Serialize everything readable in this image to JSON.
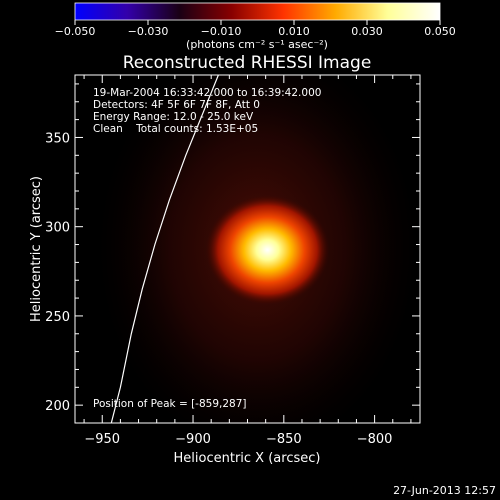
{
  "chart_data": {
    "type": "heatmap",
    "title": "Reconstructed RHESSI Image",
    "xlabel": "Heliocentric X (arcsec)",
    "ylabel": "Heliocentric Y (arcsec)",
    "xlim": [
      -965,
      -775
    ],
    "ylim": [
      190,
      385
    ],
    "x_ticks": [
      -950,
      -900,
      -850,
      -800
    ],
    "x_tick_labels": [
      "−950",
      "−900",
      "−850",
      "−800"
    ],
    "y_ticks": [
      200,
      250,
      300,
      350
    ],
    "y_tick_labels": [
      "200",
      "250",
      "300",
      "350"
    ],
    "colorbar": {
      "range": [
        -0.05,
        0.05
      ],
      "ticks": [
        -0.05,
        -0.03,
        -0.01,
        0.01,
        0.03,
        0.05
      ],
      "tick_labels": [
        "−0.050",
        "−0.030",
        "−0.010",
        "0.010",
        "0.030",
        "0.050"
      ],
      "unit_label": "(photons cm⁻² s⁻¹ asec⁻²)",
      "colors": [
        "#0000ff",
        "#3300aa",
        "#1a0015",
        "#880000",
        "#ff3300",
        "#ffaa00",
        "#ffff99",
        "#ffffff"
      ]
    },
    "peak": {
      "x": -859,
      "y": 287,
      "max_value": 0.05
    },
    "limb_curve": [
      {
        "x": -945,
        "y": 190
      },
      {
        "x": -940,
        "y": 210
      },
      {
        "x": -934,
        "y": 240
      },
      {
        "x": -928,
        "y": 265
      },
      {
        "x": -921,
        "y": 290
      },
      {
        "x": -913,
        "y": 315
      },
      {
        "x": -904,
        "y": 340
      },
      {
        "x": -894,
        "y": 365
      },
      {
        "x": -886,
        "y": 385
      }
    ],
    "grid": false
  },
  "annotations": {
    "time_range": "19-Mar-2004 16:33:42.000 to 16:39:42.000",
    "detectors": "Detectors: 4F 5F 6F 7F 8F, Att 0",
    "energy_range": "Energy Range: 12.0 - 25.0 keV",
    "clean_counts": "Clean    Total counts: 1.53E+05",
    "peak_position": "Position of Peak = [-859,287]"
  },
  "footer": {
    "timestamp": "27-Jun-2013 12:57"
  }
}
